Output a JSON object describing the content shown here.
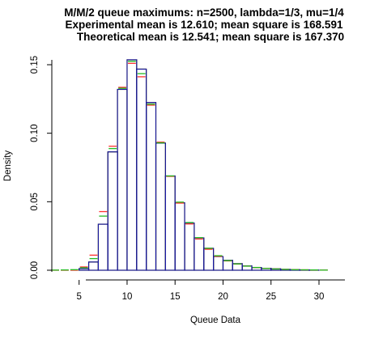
{
  "chart_data": {
    "type": "bar",
    "title_lines": [
      "M/M/2 queue maximums: n=2500, lambda=1/3, mu=1/4",
      "Experimental mean is 12.610; mean square is 168.591",
      "Theoretical mean is 12.541; mean square is 167.370"
    ],
    "xlabel": "Queue Data",
    "ylabel": "Density",
    "xlim": [
      2,
      31
    ],
    "ylim": [
      0,
      0.15
    ],
    "xticks": [
      "5",
      "10",
      "15",
      "20",
      "25",
      "30"
    ],
    "yticks": [
      "0.00",
      "0.05",
      "0.10",
      "0.15"
    ],
    "bin_edges": [
      2,
      3,
      4,
      5,
      6,
      7,
      8,
      9,
      10,
      11,
      12,
      13,
      14,
      15,
      16,
      17,
      18,
      19,
      20,
      21,
      22,
      23,
      24,
      25,
      26,
      27,
      28,
      29,
      30,
      31
    ],
    "series": [
      {
        "color": "#000000",
        "values": [
          0,
          0,
          0,
          0.0012,
          0.006,
          0.0336,
          0.0864,
          0.132,
          0.1536,
          0.1468,
          0.1224,
          0.0928,
          0.0688,
          0.0492,
          0.0344,
          0.0236,
          0.016,
          0.01,
          0.0072,
          0.0048,
          0.0032,
          0.002,
          0.0014,
          0.001,
          0.0006,
          0.0004,
          0.0002,
          0.0001,
          0
        ]
      },
      {
        "color": "#1a1ab0",
        "values": [
          0,
          0,
          0,
          0.0012,
          0.006,
          0.0336,
          0.0864,
          0.132,
          0.1536,
          0.1468,
          0.1224,
          0.0928,
          0.0688,
          0.0492,
          0.0344,
          0.0236,
          0.016,
          0.01,
          0.0072,
          0.0048,
          0.0032,
          0.002,
          0.0014,
          0.001,
          0.0006,
          0.0004,
          0.0002,
          0.0001,
          0
        ]
      },
      {
        "color": "#ff3030",
        "values": [
          0,
          0,
          0,
          0.0024,
          0.011,
          0.0428,
          0.0905,
          0.1335,
          0.151,
          0.1412,
          0.1205,
          0.0935,
          0.0685,
          0.049,
          0.0338,
          0.0228,
          0.0153,
          0.0102,
          0.0068,
          0.0045,
          0.003,
          0.002,
          0.0013,
          0.0009,
          0.0006,
          0.0004,
          0.0003,
          0.0002,
          0.0001
        ]
      },
      {
        "color": "#22bb22",
        "values": [
          0.0001,
          0.0002,
          0.0004,
          0.0018,
          0.0085,
          0.0395,
          0.0888,
          0.1328,
          0.1525,
          0.1435,
          0.1212,
          0.093,
          0.0688,
          0.0497,
          0.0348,
          0.0238,
          0.016,
          0.0106,
          0.007,
          0.0046,
          0.003,
          0.002,
          0.0013,
          0.0009,
          0.0006,
          0.0004,
          0.0003,
          0.0002,
          0.0001
        ]
      }
    ]
  }
}
